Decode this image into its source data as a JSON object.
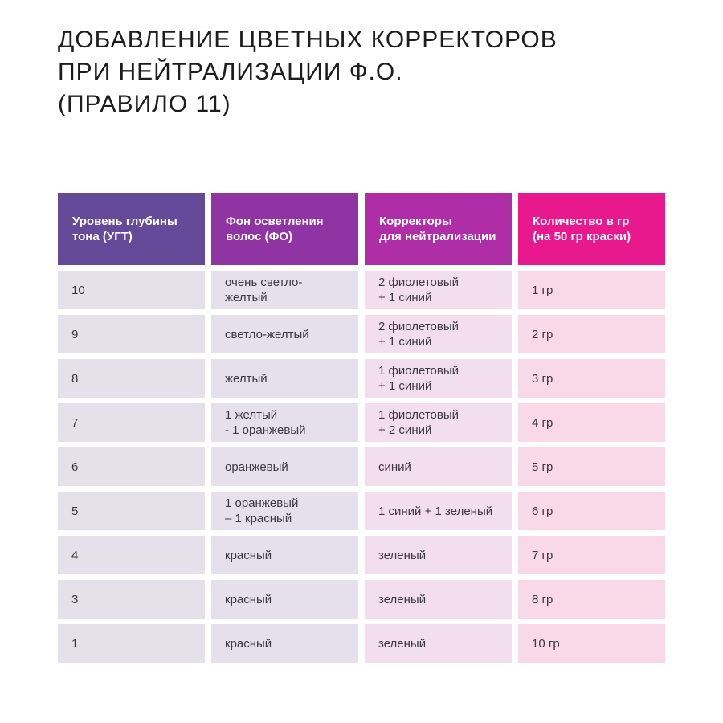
{
  "title": {
    "lines": [
      "ДОБАВЛЕНИЕ ЦВЕТНЫХ КОРРЕКТОРОВ",
      "ПРИ НЕЙТРАЛИЗАЦИИ Ф.О.",
      "(ПРАВИЛО 11)"
    ]
  },
  "table": {
    "headers": [
      {
        "label": "Уровень глубины\nтона (УГТ)",
        "bg": "#654a99"
      },
      {
        "label": "Фон осветления\nволос (ФО)",
        "bg": "#9134a3"
      },
      {
        "label": "Корректоры\nдля нейтрализации",
        "bg": "#af2da7"
      },
      {
        "label": "Количество в гр\n(на 50 гр краски)",
        "bg": "#e7198c"
      }
    ],
    "column_colors": [
      "#e4e1eb",
      "#e6dfec",
      "#f2deee",
      "#f9d8e7"
    ],
    "rows": [
      [
        "10",
        "очень светло-желтый",
        "2 фиолетовый\n+ 1 синий",
        "1 гр"
      ],
      [
        "9",
        "светло-желтый",
        "2 фиолетовый\n+ 1 синий",
        "2 гр"
      ],
      [
        "8",
        "желтый",
        "1 фиолетовый\n+ 1 синий",
        "3 гр"
      ],
      [
        "7",
        "1 желтый\n- 1 оранжевый",
        "1 фиолетовый\n+ 2 синий",
        "4 гр"
      ],
      [
        "6",
        "оранжевый",
        "синий",
        "5 гр"
      ],
      [
        "5",
        "1 оранжевый\n– 1 красный",
        "1 синий + 1 зеленый",
        "6 гр"
      ],
      [
        "4",
        "красный",
        "зеленый",
        "7 гр"
      ],
      [
        "3",
        "красный",
        "зеленый",
        "8 гр"
      ],
      [
        "1",
        "красный",
        "зеленый",
        "10 гр"
      ]
    ]
  },
  "chart_data": {
    "type": "table",
    "title": "ДОБАВЛЕНИЕ ЦВЕТНЫХ КОРРЕКТОРОВ ПРИ НЕЙТРАЛИЗАЦИИ Ф.О. (ПРАВИЛО 11)",
    "columns": [
      "Уровень глубины тона (УГТ)",
      "Фон осветления волос (ФО)",
      "Корректоры для нейтрализации",
      "Количество в гр (на 50 гр краски)"
    ],
    "rows": [
      [
        "10",
        "очень светло-желтый",
        "2 фиолетовый + 1 синий",
        "1 гр"
      ],
      [
        "9",
        "светло-желтый",
        "2 фиолетовый + 1 синий",
        "2 гр"
      ],
      [
        "8",
        "желтый",
        "1 фиолетовый + 1 синий",
        "3 гр"
      ],
      [
        "7",
        "1 желтый - 1 оранжевый",
        "1 фиолетовый + 2 синий",
        "4 гр"
      ],
      [
        "6",
        "оранжевый",
        "синий",
        "5 гр"
      ],
      [
        "5",
        "1 оранжевый – 1 красный",
        "1 синий + 1 зеленый",
        "6 гр"
      ],
      [
        "4",
        "красный",
        "зеленый",
        "7 гр"
      ],
      [
        "3",
        "красный",
        "зеленый",
        "8 гр"
      ],
      [
        "1",
        "красный",
        "зеленый",
        "10 гр"
      ]
    ],
    "legend_position": "none",
    "grid": false
  }
}
